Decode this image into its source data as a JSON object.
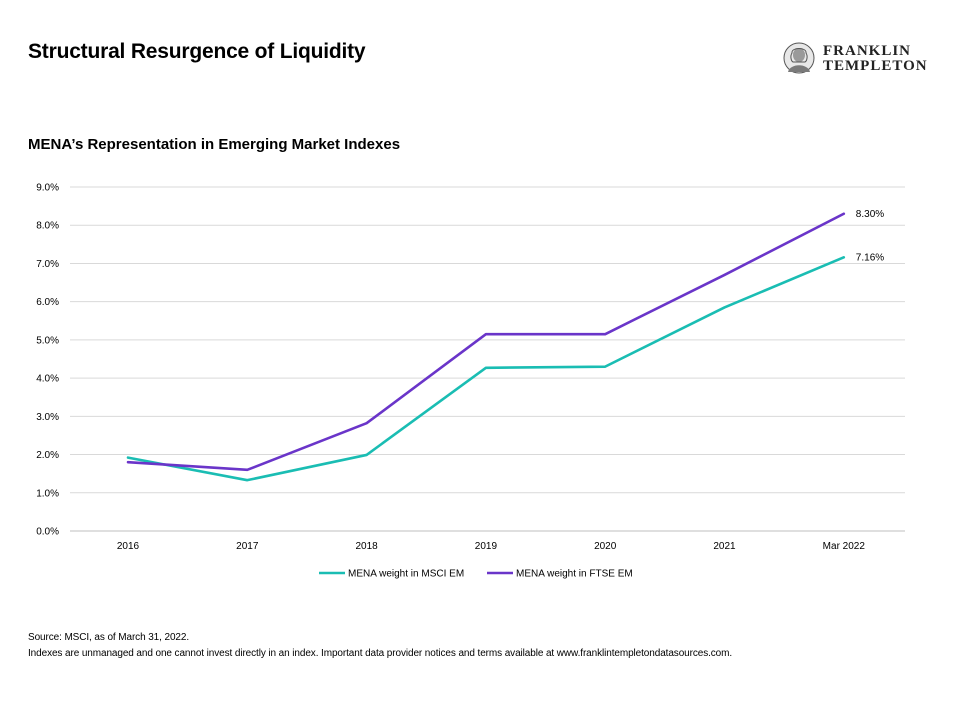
{
  "header": {
    "title": "Structural Resurgence of Liquidity",
    "logo_line1": "FRANKLIN",
    "logo_line2": "TEMPLETON"
  },
  "subtitle": "MENA’s Representation in Emerging Market Indexes",
  "chart_data": {
    "type": "line",
    "categories": [
      "2016",
      "2017",
      "2018",
      "2019",
      "2020",
      "2021",
      "Mar 2022"
    ],
    "series": [
      {
        "name": "MENA weight in MSCI EM",
        "color": "#1ABDB3",
        "values": [
          1.92,
          1.33,
          1.99,
          4.27,
          4.3,
          5.85,
          7.16
        ]
      },
      {
        "name": "MENA weight in FTSE EM",
        "color": "#6A35C9",
        "values": [
          1.8,
          1.6,
          2.82,
          5.15,
          5.15,
          6.7,
          8.3
        ]
      }
    ],
    "yticks": [
      "0.0%",
      "1.0%",
      "2.0%",
      "3.0%",
      "4.0%",
      "5.0%",
      "6.0%",
      "7.0%",
      "8.0%",
      "9.0%"
    ],
    "ylim": [
      0,
      9
    ],
    "end_labels": [
      "7.16%",
      "8.30%"
    ],
    "grid": true,
    "legend_position": "bottom"
  },
  "footer": {
    "source": "Source: MSCI, as of March 31, 2022.",
    "note": "Indexes are unmanaged and one cannot invest directly in an index. Important data provider notices and terms available at www.franklintempletondatasources.com."
  }
}
